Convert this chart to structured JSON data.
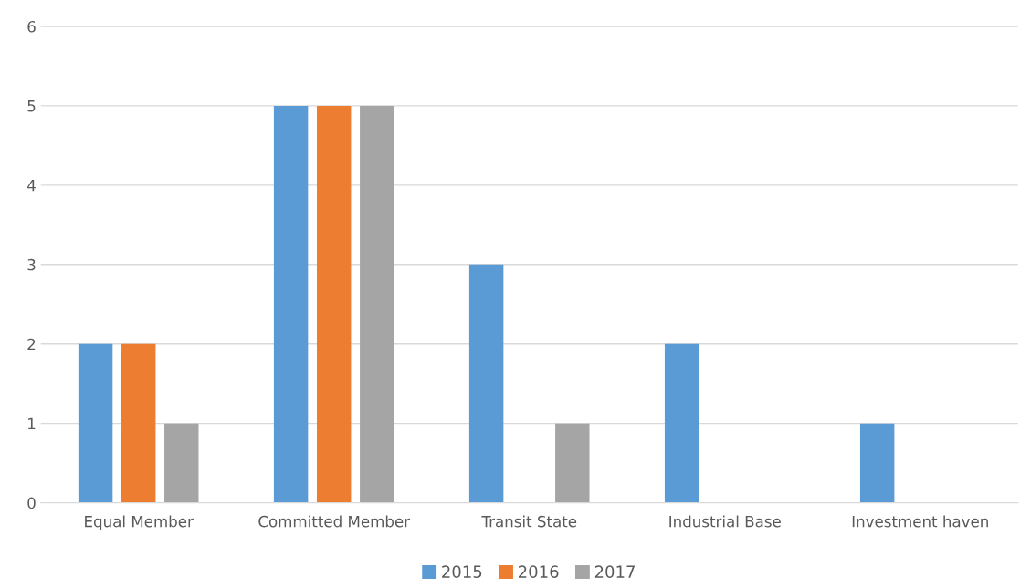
{
  "chart_data": {
    "type": "bar",
    "categories": [
      "Equal Member",
      "Committed Member",
      "Transit State",
      "Industrial Base",
      "Investment haven"
    ],
    "series": [
      {
        "name": "2015",
        "color": "#5b9bd5",
        "values": [
          2,
          5,
          3,
          2,
          1
        ]
      },
      {
        "name": "2016",
        "color": "#ed7d31",
        "values": [
          2,
          5,
          0,
          0,
          0
        ]
      },
      {
        "name": "2017",
        "color": "#a5a5a5",
        "values": [
          1,
          5,
          1,
          0,
          0
        ]
      }
    ],
    "ylim": [
      0,
      6
    ],
    "yticks": [
      0,
      1,
      2,
      3,
      4,
      5,
      6
    ],
    "grid": "y",
    "legend": "bottom"
  }
}
